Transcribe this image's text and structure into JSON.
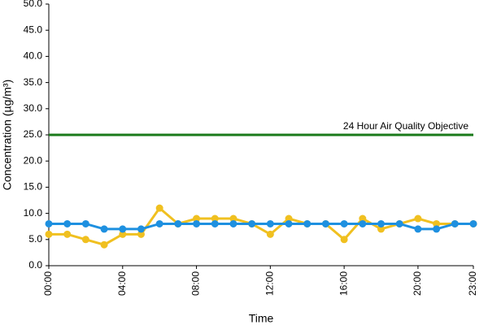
{
  "chart_data": {
    "type": "line",
    "x_label": "Time",
    "y_label": "Concentration (µg/m³)",
    "categories": [
      "00:00",
      null,
      null,
      null,
      "04:00",
      null,
      null,
      null,
      "08:00",
      null,
      null,
      null,
      "12:00",
      null,
      null,
      null,
      "16:00",
      null,
      null,
      null,
      "20:00",
      null,
      null,
      "23:00"
    ],
    "series": [
      {
        "color": "#f0c020",
        "values": [
          6,
          6,
          5,
          4,
          6,
          6,
          11,
          8,
          9,
          9,
          9,
          8,
          6,
          9,
          8,
          8,
          5,
          9,
          7,
          8,
          9,
          8,
          8,
          8
        ]
      },
      {
        "color": "#1e90e0",
        "values": [
          8,
          8,
          8,
          7,
          7,
          7,
          8,
          8,
          8,
          8,
          8,
          8,
          8,
          8,
          8,
          8,
          8,
          8,
          8,
          8,
          7,
          7,
          8,
          8
        ]
      }
    ],
    "objective": {
      "value": 25,
      "label": "24 Hour Air Quality Objective",
      "color": "#1a7a1a"
    },
    "ylim": [
      0,
      50
    ],
    "yticks": [
      {
        "value": 0,
        "label": "0.0"
      },
      {
        "value": 5,
        "label": "5.0"
      },
      {
        "value": 10,
        "label": "10.0"
      },
      {
        "value": 15,
        "label": "15.0"
      },
      {
        "value": 20,
        "label": "20.0"
      },
      {
        "value": 25,
        "label": "25.0"
      },
      {
        "value": 30,
        "label": "30.0"
      },
      {
        "value": 35,
        "label": "35.0"
      },
      {
        "value": 40,
        "label": "40.0"
      },
      {
        "value": 45,
        "label": "45.0"
      },
      {
        "value": 50,
        "label": "50.0"
      }
    ],
    "grid": false
  }
}
